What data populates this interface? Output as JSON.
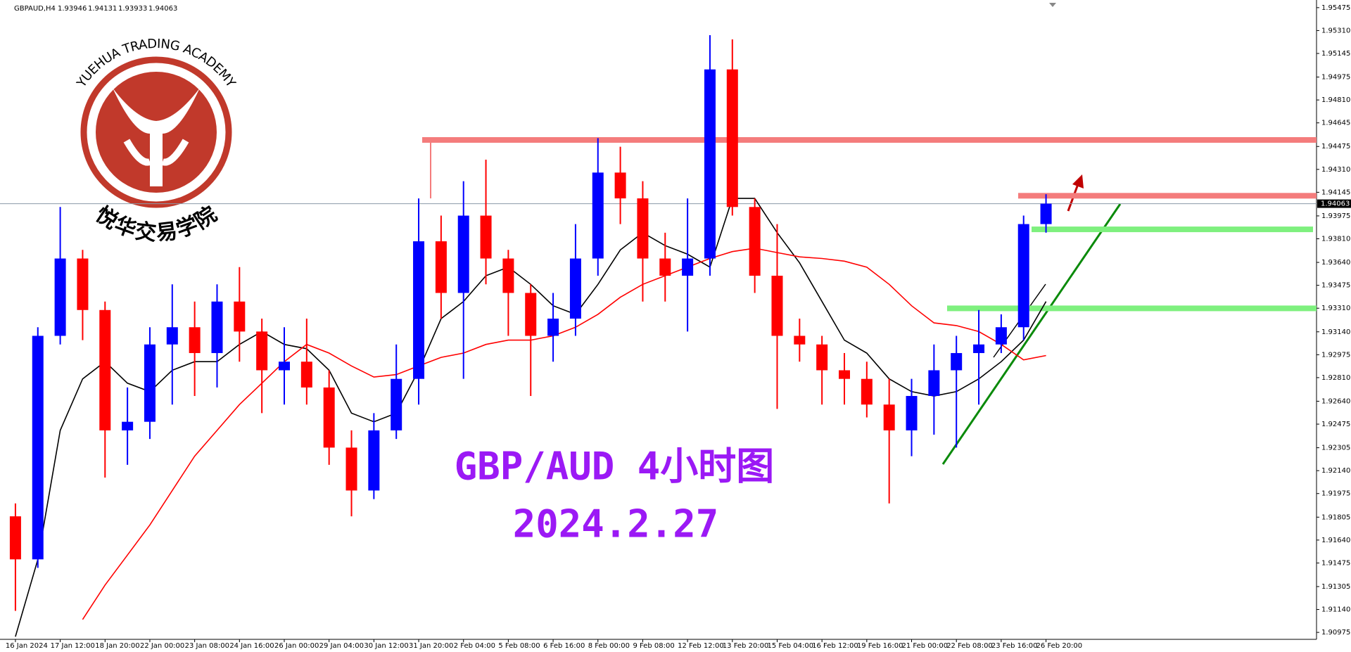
{
  "header": {
    "symbol": "GBPAUD,H4",
    "ohlc": [
      1.93946,
      1.94131,
      1.93933,
      1.94063
    ]
  },
  "logo": {
    "name_en": "YUEHUA TRADING ACADEMY",
    "name_cn": "悦华交易学院"
  },
  "chart_data": {
    "type": "candlestick",
    "title": "GBP/AUD 4小时图",
    "subtitle": "2024.2.27",
    "categories": [
      "16 Jan 2024",
      null,
      "17 Jan 12:00",
      null,
      "18 Jan 20:00",
      null,
      "22 Jan 00:00",
      null,
      "23 Jan 08:00",
      null,
      "24 Jan 16:00",
      null,
      "26 Jan 00:00",
      null,
      "29 Jan 04:00",
      null,
      "30 Jan 12:00",
      null,
      "31 Jan 20:00",
      null,
      "2 Feb 04:00",
      null,
      "5 Feb 08:00",
      null,
      "6 Feb 16:00",
      null,
      "8 Feb 00:00",
      null,
      "9 Feb 08:00",
      null,
      "12 Feb 12:00",
      null,
      "13 Feb 20:00",
      null,
      "15 Feb 04:00",
      null,
      "16 Feb 12:00",
      null,
      "19 Feb 16:00",
      null,
      "21 Feb 00:00",
      null,
      "22 Feb 08:00",
      null,
      "23 Feb 16:00",
      null,
      "26 Feb 20:00"
    ],
    "open": [
      1.91811,
      1.91501,
      1.93111,
      1.93668,
      1.93297,
      1.9243,
      1.92492,
      1.93049,
      1.93173,
      1.92987,
      1.93358,
      1.93142,
      1.92863,
      1.92925,
      1.92739,
      1.92306,
      1.91997,
      1.9243,
      1.92801,
      1.93792,
      1.9342,
      1.93977,
      1.93668,
      1.9342,
      1.93111,
      1.93235,
      1.93668,
      1.94287,
      1.94101,
      1.93668,
      1.93544,
      1.93668,
      1.9503,
      1.94039,
      1.93544,
      1.93111,
      1.93049,
      1.92863,
      1.92801,
      1.92616,
      1.9243,
      1.92678,
      1.92863,
      1.92987,
      1.93049,
      1.93173,
      1.93916
    ],
    "high": [
      1.91904,
      1.93173,
      1.94039,
      1.9373,
      1.93358,
      1.92739,
      1.93173,
      1.93482,
      1.93358,
      1.93482,
      1.93606,
      1.93235,
      1.93173,
      1.93235,
      1.92863,
      1.9243,
      1.92554,
      1.93049,
      1.94101,
      1.93977,
      1.94225,
      1.9438,
      1.9373,
      1.93482,
      1.9342,
      1.93916,
      1.94535,
      1.94473,
      1.94225,
      1.93854,
      1.94101,
      1.95277,
      1.95246,
      1.94101,
      1.93916,
      1.93235,
      1.93111,
      1.92987,
      1.92925,
      1.92801,
      1.92801,
      1.93049,
      1.93111,
      1.93297,
      1.93266,
      1.93977,
      1.94131
    ],
    "low": [
      1.9113,
      1.9144,
      1.93049,
      1.9308,
      1.9209,
      1.92182,
      1.92368,
      1.92616,
      1.92678,
      1.92739,
      1.92925,
      1.92554,
      1.92616,
      1.92616,
      1.92182,
      1.91811,
      1.91935,
      1.92368,
      1.92616,
      1.93235,
      1.92801,
      1.93482,
      1.93111,
      1.92678,
      1.92925,
      1.93111,
      1.93544,
      1.93916,
      1.93358,
      1.93358,
      1.93142,
      1.93544,
      1.93977,
      1.9342,
      1.92585,
      1.92925,
      1.92616,
      1.92616,
      1.92523,
      1.91904,
      1.92244,
      1.92399,
      1.92306,
      1.92616,
      1.92987,
      1.9308,
      1.93854
    ],
    "close": [
      1.91501,
      1.93111,
      1.93668,
      1.93297,
      1.9243,
      1.92492,
      1.93049,
      1.93173,
      1.92987,
      1.93358,
      1.93142,
      1.92863,
      1.92925,
      1.92739,
      1.92306,
      1.91997,
      1.9243,
      1.92801,
      1.93792,
      1.9342,
      1.93977,
      1.93668,
      1.9342,
      1.93111,
      1.93235,
      1.93668,
      1.94287,
      1.94101,
      1.93668,
      1.93544,
      1.93668,
      1.9503,
      1.94039,
      1.93544,
      1.93111,
      1.93049,
      1.92863,
      1.92801,
      1.92616,
      1.9243,
      1.92678,
      1.92863,
      1.92987,
      1.93049,
      1.93173,
      1.93916,
      1.94063
    ],
    "up_color": "#0000ff",
    "down_color": "#ff0000",
    "lines": [
      {
        "color": "#000000",
        "values": [
          1.90944,
          1.91501,
          1.9243,
          1.92801,
          1.92925,
          1.9277,
          1.92709,
          1.92863,
          1.92925,
          1.92925,
          1.93049,
          1.93142,
          1.93049,
          1.93018,
          1.92863,
          1.92554,
          1.92492,
          1.92554,
          1.92863,
          1.93235,
          1.93358,
          1.93544,
          1.93606,
          1.93482,
          1.93328,
          1.93266,
          1.93482,
          1.9373,
          1.93854,
          1.93761,
          1.93699,
          1.93606,
          1.94101,
          1.94101,
          1.93854,
          1.93637,
          1.93358,
          1.9308,
          1.92987,
          1.92801,
          1.92709,
          1.92678,
          1.92709,
          1.92801,
          1.92925,
          1.9308,
          1.93358
        ]
      },
      {
        "color": "#ff0000",
        "values": [
          null,
          null,
          null,
          1.91068,
          1.91316,
          1.91532,
          1.91749,
          1.91997,
          1.92244,
          1.9243,
          1.92616,
          1.9277,
          1.92925,
          1.93049,
          1.92987,
          1.92894,
          1.92814,
          1.92832,
          1.92894,
          1.92956,
          1.92987,
          1.93049,
          1.9308,
          1.9308,
          1.93111,
          1.93173,
          1.93266,
          1.93389,
          1.93482,
          1.93544,
          1.93606,
          1.93668,
          1.93718,
          1.93742,
          1.93711,
          1.9368,
          1.93668,
          1.93649,
          1.93606,
          1.93482,
          1.93328,
          1.93204,
          1.93185,
          1.93142,
          1.93049,
          1.92938,
          1.92969
        ]
      }
    ],
    "zones": [
      {
        "value": 1.94522,
        "color": "#f47c7c"
      },
      {
        "value": 1.9412,
        "color": "#f47c7c"
      },
      {
        "value": 1.93878,
        "color": "#7ef07e"
      },
      {
        "value": 1.93309,
        "color": "#7ef07e"
      }
    ],
    "current_price": 1.94063,
    "ylim": [
      1.9093,
      1.9553
    ],
    "yticks": [
      1.95475,
      {
        "value": 1.9531,
        "label": "1.95310"
      },
      1.95145,
      1.94975,
      {
        "value": 1.9481,
        "label": "1.94810"
      },
      1.94645,
      1.94475,
      {
        "value": 1.9431,
        "label": "1.94310"
      },
      1.94145,
      1.93975,
      {
        "value": 1.9381,
        "label": "1.93810"
      },
      {
        "value": 1.9364,
        "label": "1.93640"
      },
      1.93475,
      {
        "value": 1.9331,
        "label": "1.93310"
      },
      {
        "value": 1.9314,
        "label": "1.93140"
      },
      1.92975,
      {
        "value": 1.9281,
        "label": "1.92810"
      },
      {
        "value": 1.9264,
        "label": "1.92640"
      },
      1.92475,
      1.92305,
      {
        "value": 1.9214,
        "label": "1.92140"
      },
      1.91975,
      1.91805,
      {
        "value": 1.9164,
        "label": "1.91640"
      },
      1.91475,
      1.91305,
      {
        "value": 1.9114,
        "label": "1.91140"
      },
      1.90975
    ]
  }
}
